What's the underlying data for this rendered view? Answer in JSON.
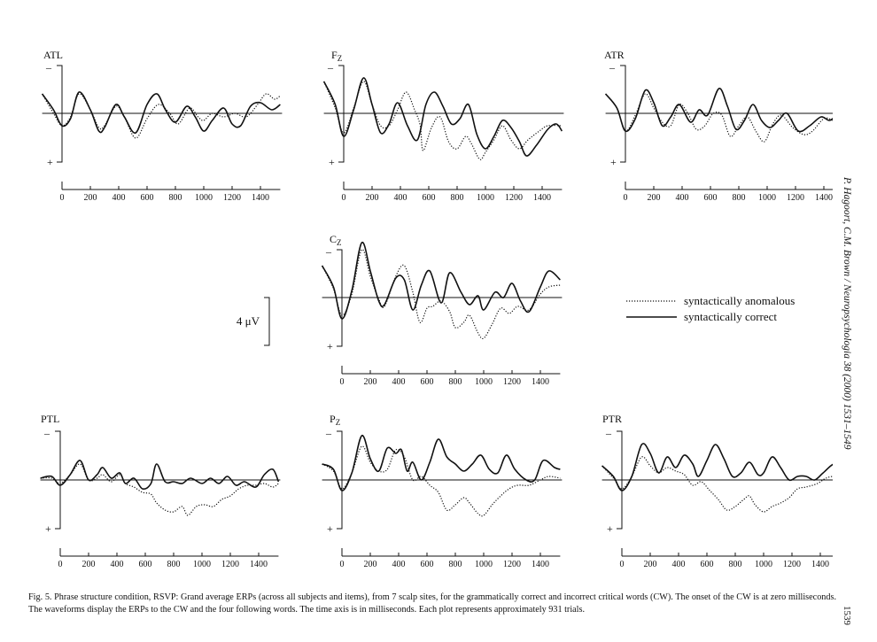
{
  "figure": {
    "plots": [
      {
        "id": "atl",
        "label": "ATL",
        "sub": ""
      },
      {
        "id": "fz",
        "label": "F",
        "sub": "Z"
      },
      {
        "id": "atr",
        "label": "ATR",
        "sub": ""
      },
      {
        "id": "cz",
        "label": "C",
        "sub": "Z"
      },
      {
        "id": "ptl",
        "label": "PTL",
        "sub": ""
      },
      {
        "id": "pz",
        "label": "P",
        "sub": "Z"
      },
      {
        "id": "ptr",
        "label": "PTR",
        "sub": ""
      }
    ],
    "polarity": {
      "negative": "–",
      "positive": "+"
    },
    "time_ticks": [
      0,
      200,
      400,
      600,
      800,
      1000,
      1200,
      1400
    ],
    "scale_bar": {
      "label": "4 μV"
    },
    "legend": [
      {
        "label": "syntactically anomalous",
        "style": "dotted"
      },
      {
        "label": "syntactically correct",
        "style": "solid"
      }
    ]
  },
  "caption": "Fig. 5. Phrase structure condition, RSVP: Grand average ERPs (across all subjects and items), from 7 scalp sites, for the grammatically correct and incorrect critical words (CW). The onset of the CW is at zero milliseconds. The waveforms display the ERPs to the CW and the four following words. The time axis is in milliseconds. Each plot represents approximately 931 trials.",
  "running_head": "P. Hagoort, C.M. Brown / Neuropsychologia 38 (2000) 1531–1549",
  "page_number": "1539"
}
